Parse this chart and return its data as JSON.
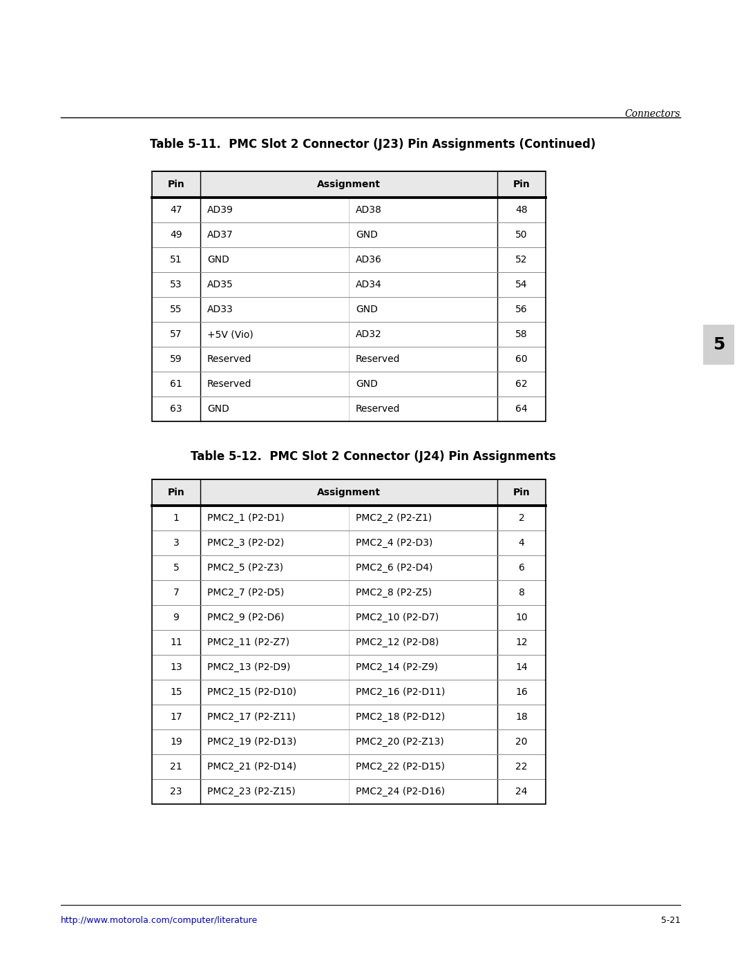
{
  "page_header_right": "Connectors",
  "table1_title": "Table 5-11.  PMC Slot 2 Connector (J23) Pin Assignments (Continued)",
  "table1_col_headers": [
    "Pin",
    "Assignment",
    "Pin"
  ],
  "table1_rows": [
    [
      "47",
      "AD39",
      "AD38",
      "48"
    ],
    [
      "49",
      "AD37",
      "GND",
      "50"
    ],
    [
      "51",
      "GND",
      "AD36",
      "52"
    ],
    [
      "53",
      "AD35",
      "AD34",
      "54"
    ],
    [
      "55",
      "AD33",
      "GND",
      "56"
    ],
    [
      "57",
      "+5V (Vio)",
      "AD32",
      "58"
    ],
    [
      "59",
      "Reserved",
      "Reserved",
      "60"
    ],
    [
      "61",
      "Reserved",
      "GND",
      "62"
    ],
    [
      "63",
      "GND",
      "Reserved",
      "64"
    ]
  ],
  "table2_title": "Table 5-12.  PMC Slot 2 Connector (J24) Pin Assignments",
  "table2_col_headers": [
    "Pin",
    "Assignment",
    "Pin"
  ],
  "table2_rows": [
    [
      "1",
      "PMC2_1 (P2-D1)",
      "PMC2_2 (P2-Z1)",
      "2"
    ],
    [
      "3",
      "PMC2_3 (P2-D2)",
      "PMC2_4 (P2-D3)",
      "4"
    ],
    [
      "5",
      "PMC2_5 (P2-Z3)",
      "PMC2_6 (P2-D4)",
      "6"
    ],
    [
      "7",
      "PMC2_7 (P2-D5)",
      "PMC2_8 (P2-Z5)",
      "8"
    ],
    [
      "9",
      "PMC2_9 (P2-D6)",
      "PMC2_10 (P2-D7)",
      "10"
    ],
    [
      "11",
      "PMC2_11 (P2-Z7)",
      "PMC2_12 (P2-D8)",
      "12"
    ],
    [
      "13",
      "PMC2_13 (P2-D9)",
      "PMC2_14 (P2-Z9)",
      "14"
    ],
    [
      "15",
      "PMC2_15 (P2-D10)",
      "PMC2_16 (P2-D11)",
      "16"
    ],
    [
      "17",
      "PMC2_17 (P2-Z11)",
      "PMC2_18 (P2-D12)",
      "18"
    ],
    [
      "19",
      "PMC2_19 (P2-D13)",
      "PMC2_20 (P2-Z13)",
      "20"
    ],
    [
      "21",
      "PMC2_21 (P2-D14)",
      "PMC2_22 (P2-D15)",
      "22"
    ],
    [
      "23",
      "PMC2_23 (P2-Z15)",
      "PMC2_24 (P2-D16)",
      "24"
    ]
  ],
  "footer_left": "http://www.motorola.com/computer/literature",
  "footer_right": "5-21",
  "sidebar_label": "5",
  "bg_color": "#ffffff",
  "text_color": "#000000",
  "link_color": "#0000cc",
  "thick_line_color": "#000000",
  "thin_line_color": "#888888",
  "gray_bg": "#d0d0d0",
  "header_bg": "#e8e8e8",
  "title_font_size": 12,
  "body_font_size": 10,
  "footer_font_size": 9,
  "page_header_font_size": 10,
  "sidebar_font_size": 18
}
